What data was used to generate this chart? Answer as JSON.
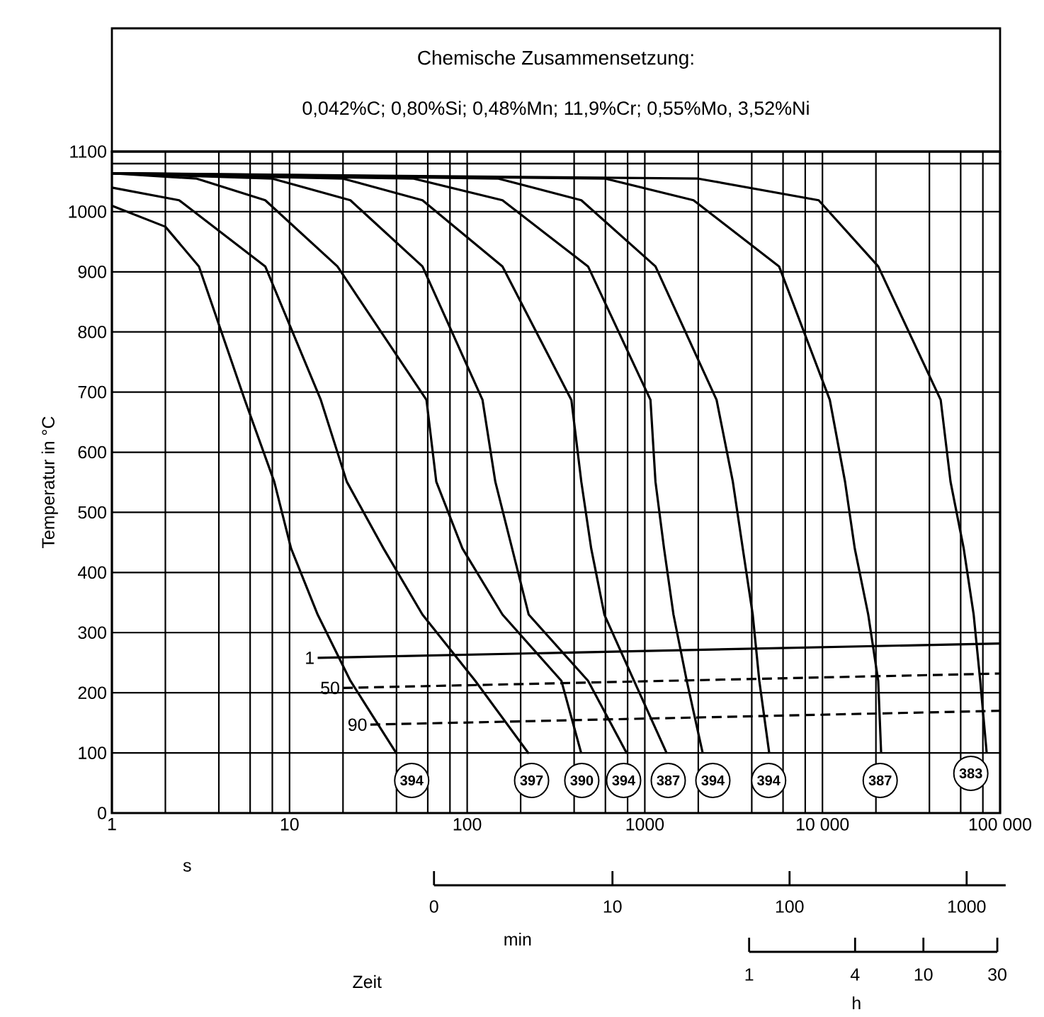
{
  "chart_data": {
    "type": "line",
    "title": "Chemische Zusammensetzung:",
    "subtitle": "0,042%C; 0,80%Si; 0,48%Mn; 11,9%Cr; 0,55%Mo, 3,52%Ni",
    "xlabel": "s",
    "ylabel": "Temperatur in °C",
    "log": "x",
    "xlim": [
      1,
      100000
    ],
    "xticks": [
      1,
      {
        "value": 2,
        "label": null
      },
      {
        "value": 4,
        "label": null
      },
      {
        "value": 6,
        "label": null
      },
      {
        "value": 8,
        "label": null
      },
      10,
      {
        "value": 20,
        "label": null
      },
      {
        "value": 40,
        "label": null
      },
      {
        "value": 60,
        "label": null
      },
      {
        "value": 80,
        "label": null
      },
      100,
      {
        "value": 200,
        "label": null
      },
      {
        "value": 400,
        "label": null
      },
      {
        "value": 600,
        "label": null
      },
      {
        "value": 800,
        "label": null
      },
      1000,
      {
        "value": 2000,
        "label": null
      },
      {
        "value": 4000,
        "label": null
      },
      {
        "value": 6000,
        "label": null
      },
      {
        "value": 8000,
        "label": null
      },
      {
        "value": 10000,
        "label": "10 000"
      },
      {
        "value": 20000,
        "label": null
      },
      {
        "value": 40000,
        "label": null
      },
      {
        "value": 60000,
        "label": null
      },
      {
        "value": 80000,
        "label": null
      },
      {
        "value": 100000,
        "label": "100 000"
      }
    ],
    "ylim": [
      0,
      1100
    ],
    "yticks": [
      0,
      100,
      200,
      300,
      400,
      500,
      600,
      700,
      800,
      900,
      1000,
      1100
    ],
    "grid": true,
    "ref_lines": [
      {
        "axis": "y",
        "value": 1080
      }
    ],
    "series": [
      {
        "color": "#000000",
        "x": [
          1,
          2,
          3.09,
          5.6,
          8.2,
          10.2,
          14.4,
          22,
          40
        ],
        "values": [
          1010,
          975,
          909,
          687,
          551,
          440,
          330,
          220,
          99
        ]
      },
      {
        "color": "#000000",
        "x": [
          1,
          2.39,
          7.3,
          15,
          21,
          33.8,
          56,
          111,
          222
        ],
        "values": [
          1040,
          1019,
          909,
          687,
          551,
          440,
          330,
          220,
          99
        ]
      },
      {
        "color": "#000000",
        "x": [
          1,
          3,
          7.3,
          18.6,
          59,
          67,
          94,
          158,
          339,
          439
        ],
        "values": [
          1064,
          1055,
          1019,
          909,
          687,
          551,
          440,
          330,
          220,
          99
        ]
      },
      {
        "color": "#000000",
        "x": [
          1,
          8,
          22,
          56,
          122,
          144,
          179,
          222,
          479,
          793
        ],
        "values": [
          1064,
          1055,
          1019,
          909,
          687,
          551,
          440,
          330,
          220,
          99
        ]
      },
      {
        "color": "#000000",
        "x": [
          1,
          20,
          56,
          158,
          386,
          439,
          499,
          592,
          869,
          1330
        ],
        "values": [
          1064,
          1055,
          1019,
          909,
          687,
          551,
          440,
          330,
          220,
          99
        ]
      },
      {
        "color": "#000000",
        "x": [
          1,
          50,
          158,
          479,
          1076,
          1148,
          1283,
          1450,
          1722,
          2120
        ],
        "values": [
          1064,
          1055,
          1019,
          909,
          687,
          551,
          440,
          330,
          220,
          99
        ]
      },
      {
        "color": "#000000",
        "x": [
          1,
          150,
          439,
          1148,
          2535,
          3130,
          3560,
          4050,
          4410,
          5020
        ],
        "values": [
          1064,
          1055,
          1019,
          909,
          687,
          551,
          440,
          330,
          220,
          99
        ]
      },
      {
        "color": "#000000",
        "x": [
          1,
          600,
          1880,
          5700,
          11000,
          13400,
          15200,
          18100,
          20600,
          21400
        ],
        "values": [
          1064,
          1055,
          1019,
          909,
          687,
          551,
          440,
          330,
          220,
          99
        ]
      },
      {
        "color": "#000000",
        "x": [
          1,
          2000,
          9520,
          20600,
          46300,
          52600,
          62400,
          71000,
          77300,
          84100
        ],
        "values": [
          1064,
          1055,
          1019,
          909,
          687,
          551,
          440,
          330,
          220,
          99
        ]
      },
      {
        "name": "1",
        "color": "#000000",
        "line_style": "solid",
        "x": [
          14.4,
          100000
        ],
        "values": [
          258,
          282
        ]
      },
      {
        "name": "50",
        "color": "#000000",
        "line_style": "dashed",
        "x": [
          20,
          100000
        ],
        "values": [
          208,
          232
        ]
      },
      {
        "name": "90",
        "color": "#000000",
        "line_style": "dashed",
        "x": [
          28.5,
          100000
        ],
        "values": [
          147,
          170
        ]
      }
    ],
    "annotations": [
      "394",
      "397",
      "390",
      "394",
      "387",
      "394",
      "394",
      "387",
      "383",
      "0",
      "10",
      "100",
      "1000",
      "min",
      "1",
      "4",
      "10",
      "30",
      "h",
      "Zeit"
    ]
  }
}
